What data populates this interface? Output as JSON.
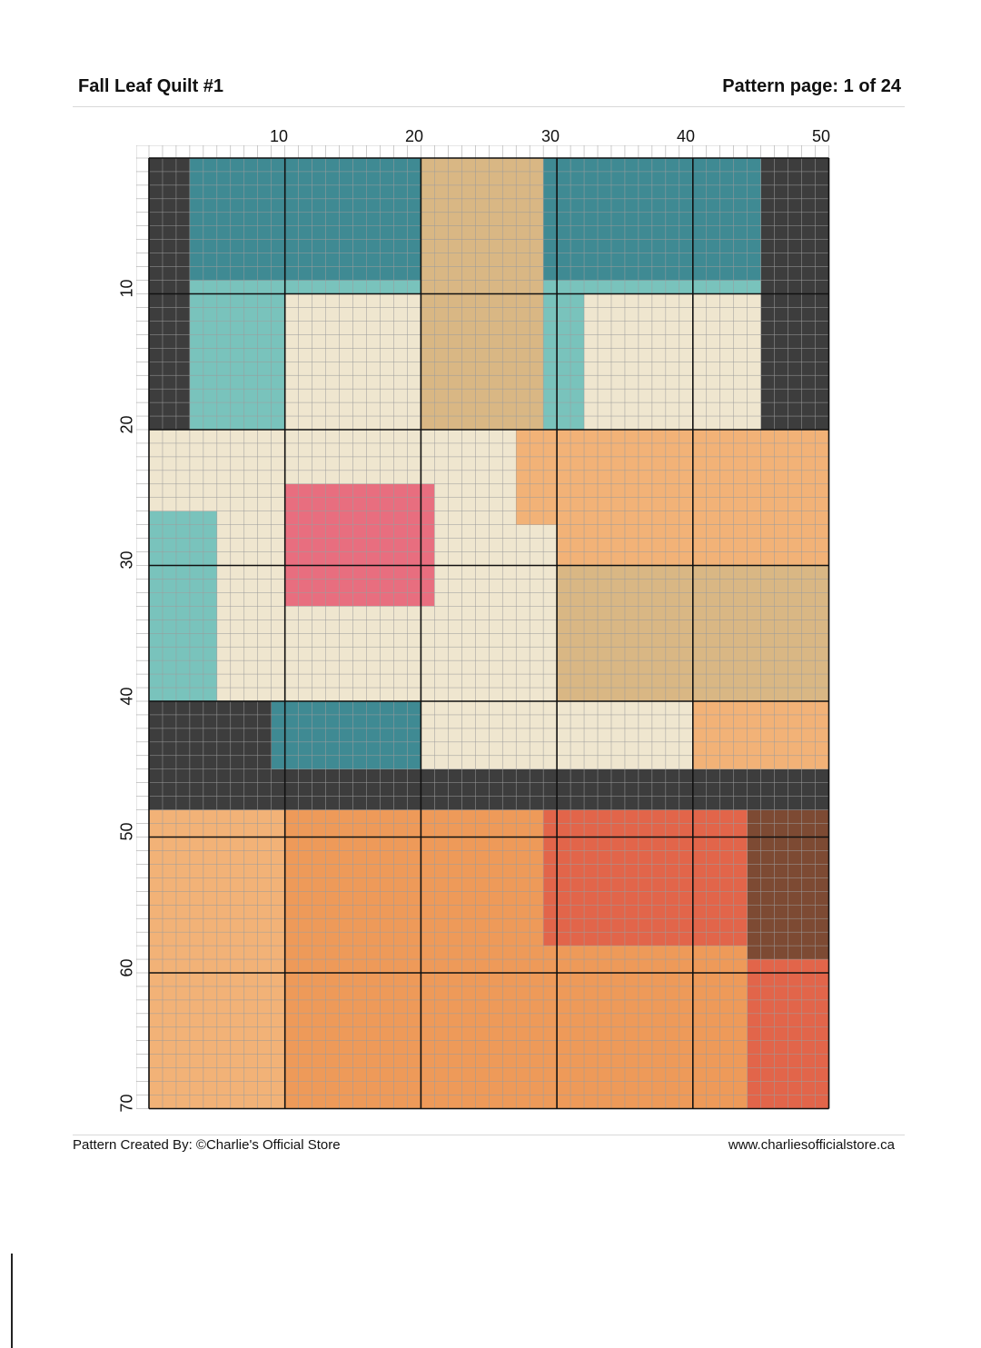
{
  "header": {
    "title": "Fall Leaf Quilt #1",
    "page_info": "Pattern page: 1 of 24"
  },
  "grid": {
    "columns": 50,
    "rows": 70,
    "column_labels": [
      "10",
      "20",
      "30",
      "40",
      "50"
    ],
    "row_labels": [
      "10",
      "20",
      "30",
      "40",
      "50",
      "60",
      "70"
    ],
    "palette": {
      "teal_dark": "#3f8a93",
      "teal_light": "#79c3bc",
      "grey_dark": "#3d3d3d",
      "grey_mid": "#8c8c8c",
      "cream": "#efe6cf",
      "tan": "#d9b784",
      "orange_light": "#f2b277",
      "orange": "#ee9a59",
      "red_orange": "#e2654a",
      "pink": "#e86e7f",
      "brown": "#7d4a33",
      "gridline": "#999999"
    }
  },
  "footer": {
    "credit": "Pattern Created By: ©Charlie's Official Store",
    "website": "www.charliesofficialstore.ca"
  }
}
